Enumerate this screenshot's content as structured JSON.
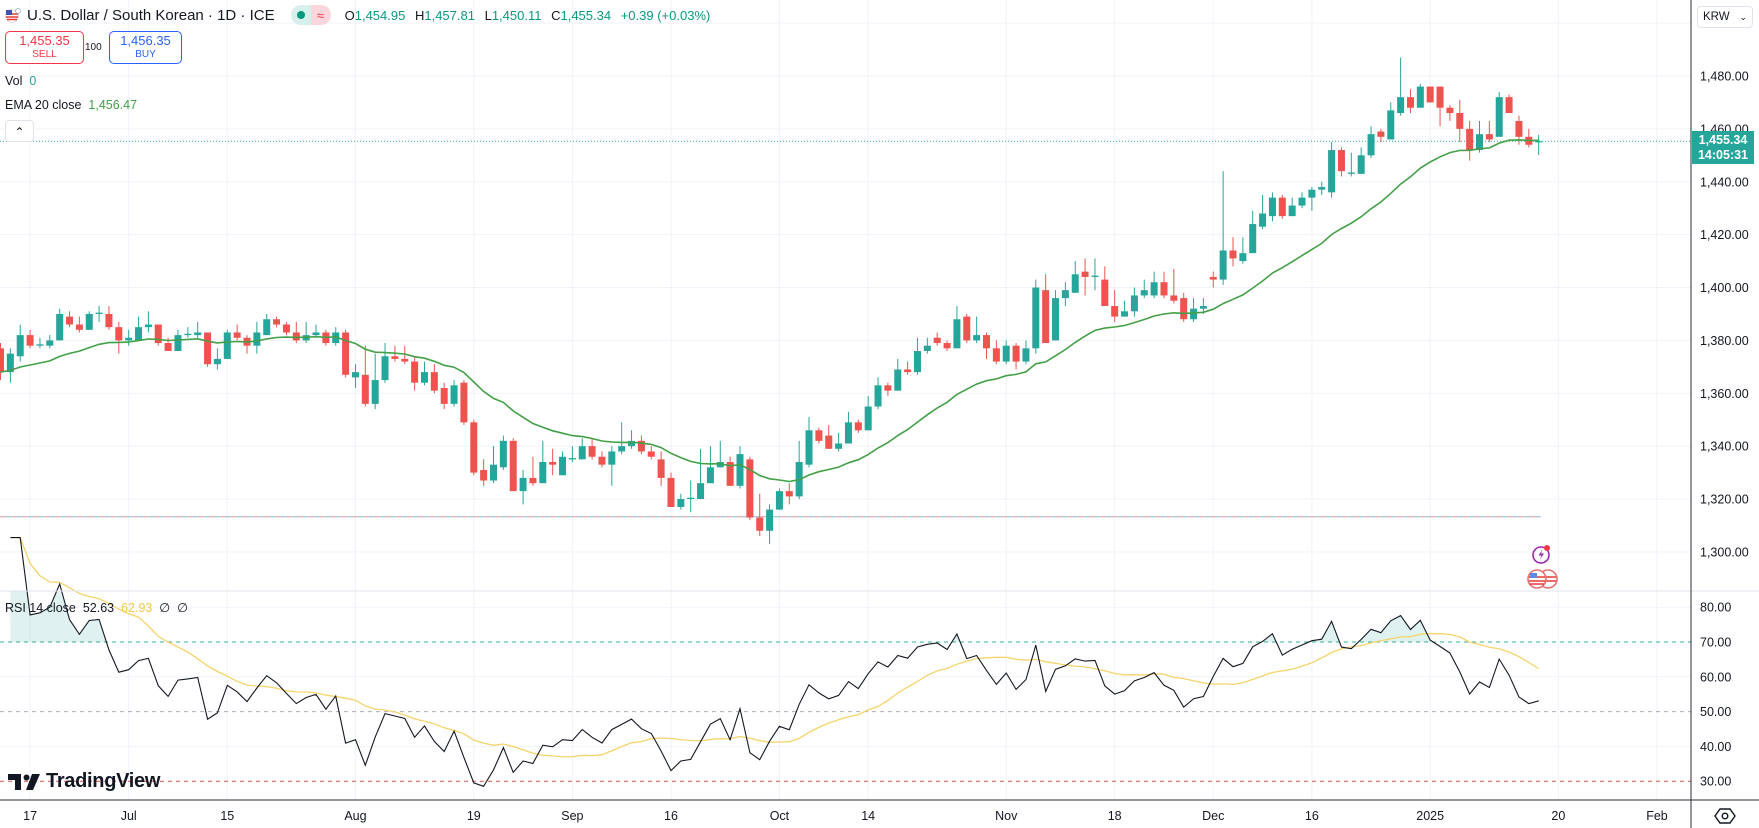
{
  "header": {
    "title": "U.S. Dollar / South Korean · 1D · ICE",
    "ohlc": {
      "o_label": "O",
      "o": "1,454.95",
      "h_label": "H",
      "h": "1,457.81",
      "l_label": "L",
      "l": "1,450.11",
      "c_label": "C",
      "c": "1,455.34",
      "change": "+0.39 (+0.03%)"
    },
    "status_icons": [
      "market-open-dot",
      "delayed-data-wave"
    ]
  },
  "trade": {
    "sell_price": "1,455.35",
    "sell_label": "SELL",
    "quantity": "100",
    "buy_price": "1,456.35",
    "buy_label": "BUY"
  },
  "legend": {
    "vol_label": "Vol",
    "vol_value": "0",
    "ema_label": "EMA 20 close",
    "ema_value": "1,456.47",
    "collapse_icon": "chevron-up",
    "rsi_label": "RSI 14 close",
    "rsi_value": "52.63",
    "rsi_ma_value": "62.93",
    "rsi_extra1": "∅",
    "rsi_extra2": "∅"
  },
  "price_axis": {
    "currency": "KRW",
    "last_price": "1,455.34",
    "countdown": "14:05:31",
    "ticks": [
      "1,480.00",
      "1,460.00",
      "1,440.00",
      "1,420.00",
      "1,400.00",
      "1,380.00",
      "1,360.00",
      "1,340.00",
      "1,320.00",
      "1,300.00"
    ]
  },
  "rsi_axis": {
    "ticks": [
      "80.00",
      "70.00",
      "60.00",
      "50.00",
      "40.00",
      "30.00"
    ]
  },
  "time_axis": {
    "ticks": [
      {
        "label": "17",
        "date": "2024-06-17"
      },
      {
        "label": "Jul",
        "date": "2024-07-01"
      },
      {
        "label": "15",
        "date": "2024-07-15"
      },
      {
        "label": "Aug",
        "date": "2024-08-01"
      },
      {
        "label": "19",
        "date": "2024-08-19"
      },
      {
        "label": "Sep",
        "date": "2024-09-02"
      },
      {
        "label": "16",
        "date": "2024-09-16"
      },
      {
        "label": "Oct",
        "date": "2024-10-01"
      },
      {
        "label": "14",
        "date": "2024-10-14"
      },
      {
        "label": "Nov",
        "date": "2024-11-01"
      },
      {
        "label": "18",
        "date": "2024-11-18"
      },
      {
        "label": "Dec",
        "date": "2024-12-02"
      },
      {
        "label": "16",
        "date": "2024-12-16"
      },
      {
        "label": "2025",
        "date": "2025-01-01"
      },
      {
        "label": "20",
        "date": "2025-01-20"
      },
      {
        "label": "Feb",
        "date": "2025-02-03"
      }
    ]
  },
  "branding": {
    "logo_text": "TradingView"
  },
  "colors": {
    "up": "#26a69a",
    "down": "#ef5350",
    "ema": "#43a047",
    "rsi": "#131722",
    "rsi_ma": "#f5d46b",
    "grid": "#f0f3fa",
    "level70": "#089981",
    "level50": "#9598a1",
    "level30": "#c62828",
    "accent": "#26a69a"
  },
  "chart_data": {
    "type": "candlestick",
    "symbol": "USDKRW",
    "interval": "1D",
    "ylim": [
      1285,
      1500
    ],
    "indicators": [
      {
        "name": "EMA",
        "length": 20,
        "source": "close"
      },
      {
        "name": "RSI",
        "length": 14,
        "source": "close",
        "ma_length": 14,
        "levels": [
          70,
          50,
          30
        ],
        "ylim": [
          22,
          84
        ]
      }
    ],
    "horizontal_line": 1313.3,
    "candles": [
      [
        "2024-06-12",
        1377,
        1379,
        1365,
        1368
      ],
      [
        "2024-06-13",
        1368,
        1377,
        1364,
        1375
      ],
      [
        "2024-06-14",
        1374,
        1386,
        1372,
        1382
      ],
      [
        "2024-06-17",
        1382,
        1384,
        1377,
        1378
      ],
      [
        "2024-06-18",
        1378,
        1381,
        1377,
        1378.5
      ],
      [
        "2024-06-19",
        1378,
        1382,
        1377,
        1380
      ],
      [
        "2024-06-20",
        1380,
        1392,
        1380,
        1390
      ],
      [
        "2024-06-21",
        1389,
        1391,
        1385,
        1386
      ],
      [
        "2024-06-24",
        1386,
        1389,
        1383,
        1384
      ],
      [
        "2024-06-25",
        1384,
        1391,
        1384,
        1390
      ],
      [
        "2024-06-26",
        1390,
        1393,
        1387,
        1390.5
      ],
      [
        "2024-06-27",
        1390,
        1393,
        1384,
        1385
      ],
      [
        "2024-06-28",
        1385,
        1387,
        1375,
        1380
      ],
      [
        "2024-07-01",
        1380,
        1384,
        1378,
        1381
      ],
      [
        "2024-07-02",
        1380,
        1389,
        1380,
        1385
      ],
      [
        "2024-07-03",
        1385,
        1391,
        1383,
        1386
      ],
      [
        "2024-07-04",
        1386,
        1386,
        1378,
        1379
      ],
      [
        "2024-07-05",
        1379,
        1381,
        1376,
        1376
      ],
      [
        "2024-07-08",
        1376,
        1384,
        1376,
        1382
      ],
      [
        "2024-07-09",
        1382,
        1385,
        1381,
        1382.5
      ],
      [
        "2024-07-10",
        1382,
        1387,
        1381,
        1383
      ],
      [
        "2024-07-11",
        1383,
        1383,
        1370,
        1371
      ],
      [
        "2024-07-12",
        1371,
        1377,
        1369,
        1373
      ],
      [
        "2024-07-15",
        1373,
        1384,
        1373,
        1383
      ],
      [
        "2024-07-16",
        1383,
        1386,
        1380,
        1381
      ],
      [
        "2024-07-17",
        1381,
        1382,
        1375,
        1378
      ],
      [
        "2024-07-18",
        1378,
        1387,
        1375,
        1383
      ],
      [
        "2024-07-19",
        1382,
        1390,
        1382,
        1388
      ],
      [
        "2024-07-22",
        1388,
        1389,
        1385,
        1386
      ],
      [
        "2024-07-23",
        1386,
        1387,
        1382,
        1383
      ],
      [
        "2024-07-24",
        1383,
        1387,
        1379,
        1380
      ],
      [
        "2024-07-25",
        1380,
        1387,
        1379,
        1382
      ],
      [
        "2024-07-26",
        1382,
        1386,
        1381,
        1383
      ],
      [
        "2024-07-29",
        1383,
        1384,
        1378,
        1379
      ],
      [
        "2024-07-30",
        1379,
        1385,
        1378,
        1383
      ],
      [
        "2024-07-31",
        1383,
        1384,
        1366,
        1367
      ],
      [
        "2024-08-01",
        1366,
        1371,
        1362,
        1368
      ],
      [
        "2024-08-02",
        1367,
        1378,
        1355,
        1356
      ],
      [
        "2024-08-05",
        1356,
        1375,
        1354,
        1365
      ],
      [
        "2024-08-06",
        1365,
        1379,
        1364,
        1374
      ],
      [
        "2024-08-07",
        1374,
        1378,
        1372,
        1373
      ],
      [
        "2024-08-08",
        1373,
        1378,
        1371,
        1372
      ],
      [
        "2024-08-09",
        1372,
        1374,
        1361,
        1364
      ],
      [
        "2024-08-12",
        1364,
        1372,
        1363,
        1368
      ],
      [
        "2024-08-13",
        1368,
        1371,
        1360,
        1361
      ],
      [
        "2024-08-14",
        1362,
        1364,
        1354,
        1356
      ],
      [
        "2024-08-15",
        1356,
        1365,
        1355,
        1363
      ],
      [
        "2024-08-16",
        1364,
        1365,
        1348,
        1349
      ],
      [
        "2024-08-19",
        1349,
        1350,
        1329,
        1330
      ],
      [
        "2024-08-20",
        1331,
        1335,
        1325,
        1327
      ],
      [
        "2024-08-21",
        1327,
        1340,
        1326,
        1333
      ],
      [
        "2024-08-22",
        1332,
        1344,
        1331,
        1342
      ],
      [
        "2024-08-23",
        1342,
        1343,
        1323,
        1323
      ],
      [
        "2024-08-26",
        1323,
        1331,
        1318,
        1328
      ],
      [
        "2024-08-27",
        1328,
        1336,
        1325,
        1326
      ],
      [
        "2024-08-28",
        1326,
        1342,
        1326,
        1334
      ],
      [
        "2024-08-29",
        1334,
        1339,
        1329,
        1333
      ],
      [
        "2024-08-30",
        1329,
        1338,
        1329,
        1336
      ],
      [
        "2024-09-02",
        1335,
        1340,
        1334,
        1335.5
      ],
      [
        "2024-09-03",
        1335,
        1343,
        1335,
        1340
      ],
      [
        "2024-09-04",
        1340,
        1343,
        1335,
        1336
      ],
      [
        "2024-09-05",
        1336,
        1338,
        1332,
        1333
      ],
      [
        "2024-09-06",
        1333,
        1340,
        1325,
        1338
      ],
      [
        "2024-09-09",
        1338,
        1349,
        1337,
        1340
      ],
      [
        "2024-09-10",
        1340,
        1346,
        1339,
        1342
      ],
      [
        "2024-09-11",
        1342,
        1344,
        1337,
        1338
      ],
      [
        "2024-09-12",
        1338,
        1340,
        1335,
        1336
      ],
      [
        "2024-09-13",
        1335,
        1338,
        1325,
        1328
      ],
      [
        "2024-09-16",
        1328,
        1330,
        1317,
        1317
      ],
      [
        "2024-09-17",
        1317,
        1322,
        1316,
        1320
      ],
      [
        "2024-09-18",
        1320,
        1327,
        1315,
        1320.5
      ],
      [
        "2024-09-19",
        1320,
        1339,
        1320,
        1326
      ],
      [
        "2024-09-20",
        1326,
        1340,
        1326,
        1332
      ],
      [
        "2024-09-23",
        1332,
        1342,
        1332,
        1334
      ],
      [
        "2024-09-24",
        1334,
        1336,
        1325,
        1325
      ],
      [
        "2024-09-25",
        1325,
        1340,
        1324,
        1337
      ],
      [
        "2024-09-26",
        1335,
        1336,
        1312,
        1313
      ],
      [
        "2024-09-27",
        1313,
        1322,
        1306,
        1308
      ],
      [
        "2024-09-30",
        1308,
        1318,
        1303,
        1316
      ],
      [
        "2024-10-01",
        1316,
        1324,
        1316,
        1323
      ],
      [
        "2024-10-02",
        1323,
        1326,
        1318,
        1321
      ],
      [
        "2024-10-03",
        1321,
        1342,
        1320,
        1334
      ],
      [
        "2024-10-04",
        1333,
        1351,
        1332,
        1346
      ],
      [
        "2024-10-07",
        1346,
        1347,
        1341,
        1342
      ],
      [
        "2024-10-08",
        1344,
        1348,
        1339,
        1339
      ],
      [
        "2024-10-09",
        1339,
        1345,
        1338,
        1341
      ],
      [
        "2024-10-10",
        1341,
        1353,
        1341,
        1349
      ],
      [
        "2024-10-11",
        1349,
        1350,
        1345,
        1346
      ],
      [
        "2024-10-14",
        1346,
        1359,
        1346,
        1355
      ],
      [
        "2024-10-15",
        1355,
        1366,
        1354,
        1363
      ],
      [
        "2024-10-16",
        1363,
        1364,
        1359,
        1361
      ],
      [
        "2024-10-17",
        1361,
        1373,
        1361,
        1369
      ],
      [
        "2024-10-18",
        1369,
        1372,
        1367,
        1368
      ],
      [
        "2024-10-21",
        1368,
        1381,
        1367,
        1376
      ],
      [
        "2024-10-22",
        1376,
        1381,
        1375,
        1378
      ],
      [
        "2024-10-23",
        1381,
        1383,
        1378,
        1379
      ],
      [
        "2024-10-24",
        1379,
        1380,
        1376,
        1377
      ],
      [
        "2024-10-25",
        1377,
        1393,
        1377,
        1388
      ],
      [
        "2024-10-28",
        1389,
        1390,
        1379,
        1380
      ],
      [
        "2024-10-29",
        1380,
        1389,
        1379,
        1382
      ],
      [
        "2024-10-30",
        1382,
        1383,
        1373,
        1377
      ],
      [
        "2024-10-31",
        1377,
        1380,
        1371,
        1372
      ],
      [
        "2024-11-01",
        1372,
        1380,
        1371,
        1378
      ],
      [
        "2024-11-04",
        1378,
        1379,
        1369,
        1372
      ],
      [
        "2024-11-05",
        1372,
        1380,
        1371,
        1377
      ],
      [
        "2024-11-06",
        1377,
        1403,
        1375,
        1400
      ],
      [
        "2024-11-07",
        1399,
        1405,
        1379,
        1379
      ],
      [
        "2024-11-08",
        1380,
        1399,
        1380,
        1396
      ],
      [
        "2024-11-11",
        1396,
        1402,
        1393,
        1399
      ],
      [
        "2024-11-12",
        1398,
        1410,
        1398,
        1405
      ],
      [
        "2024-11-13",
        1406,
        1411,
        1397,
        1404
      ],
      [
        "2024-11-14",
        1404,
        1411,
        1399,
        1404.5
      ],
      [
        "2024-11-15",
        1403,
        1408,
        1393,
        1393
      ],
      [
        "2024-11-18",
        1393,
        1399,
        1387,
        1389
      ],
      [
        "2024-11-19",
        1389,
        1395,
        1389,
        1391
      ],
      [
        "2024-11-20",
        1391,
        1400,
        1389,
        1397
      ],
      [
        "2024-11-21",
        1397,
        1403,
        1396,
        1399
      ],
      [
        "2024-11-22",
        1397,
        1406,
        1396,
        1402
      ],
      [
        "2024-11-25",
        1402,
        1406,
        1396,
        1397
      ],
      [
        "2024-11-26",
        1397,
        1407,
        1394,
        1395
      ],
      [
        "2024-11-27",
        1396,
        1398,
        1387,
        1388
      ],
      [
        "2024-11-28",
        1388,
        1396,
        1387,
        1392
      ],
      [
        "2024-11-29",
        1392,
        1396,
        1390,
        1393
      ],
      [
        "2024-12-02",
        1404,
        1406,
        1400,
        1403
      ],
      [
        "2024-12-03",
        1403,
        1444,
        1401,
        1414
      ],
      [
        "2024-12-04",
        1414,
        1419,
        1408,
        1411
      ],
      [
        "2024-12-05",
        1410,
        1419,
        1409,
        1413
      ],
      [
        "2024-12-06",
        1413,
        1429,
        1413,
        1424
      ],
      [
        "2024-12-09",
        1423,
        1435,
        1422,
        1428
      ],
      [
        "2024-12-10",
        1427,
        1436,
        1425,
        1434
      ],
      [
        "2024-12-11",
        1434,
        1435,
        1426,
        1427
      ],
      [
        "2024-12-12",
        1427,
        1434,
        1427,
        1431
      ],
      [
        "2024-12-13",
        1431,
        1436,
        1430,
        1434
      ],
      [
        "2024-12-16",
        1434,
        1438,
        1429,
        1437
      ],
      [
        "2024-12-17",
        1437,
        1440,
        1435,
        1438
      ],
      [
        "2024-12-18",
        1436,
        1455,
        1434,
        1452
      ],
      [
        "2024-12-19",
        1452,
        1453,
        1442,
        1444
      ],
      [
        "2024-12-20",
        1443,
        1451,
        1442,
        1443.5
      ],
      [
        "2024-12-23",
        1443,
        1453,
        1443,
        1450
      ],
      [
        "2024-12-24",
        1450,
        1461,
        1449,
        1458
      ],
      [
        "2024-12-25",
        1459,
        1460,
        1455,
        1457
      ],
      [
        "2024-12-26",
        1456,
        1470,
        1456,
        1467
      ],
      [
        "2024-12-27",
        1466,
        1487,
        1465,
        1472
      ],
      [
        "2024-12-30",
        1472,
        1475,
        1466,
        1468
      ],
      [
        "2024-12-31",
        1468,
        1477,
        1468,
        1476
      ],
      [
        "2025-01-01",
        1476,
        1476,
        1470,
        1470
      ],
      [
        "2025-01-02",
        1476,
        1476,
        1461,
        1468
      ],
      [
        "2025-01-03",
        1468,
        1469,
        1463,
        1466
      ],
      [
        "2025-01-06",
        1466,
        1471,
        1455,
        1460
      ],
      [
        "2025-01-07",
        1460,
        1463,
        1448,
        1452
      ],
      [
        "2025-01-08",
        1452,
        1463,
        1451,
        1458
      ],
      [
        "2025-01-09",
        1458,
        1463,
        1455,
        1456
      ],
      [
        "2025-01-10",
        1457,
        1474,
        1457,
        1472
      ],
      [
        "2025-01-13",
        1472,
        1473,
        1466,
        1466
      ],
      [
        "2025-01-14",
        1463,
        1465,
        1454,
        1457
      ],
      [
        "2025-01-15",
        1457,
        1460,
        1453,
        1454
      ],
      [
        "2025-01-16",
        1454.95,
        1457.81,
        1450.11,
        1455.34
      ]
    ]
  }
}
